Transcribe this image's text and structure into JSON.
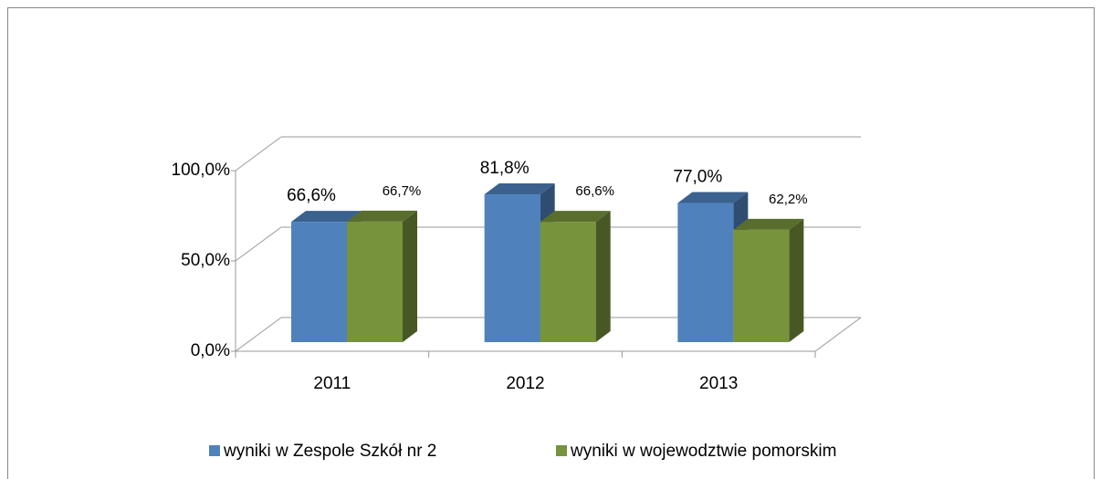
{
  "chart_data": {
    "type": "bar3d",
    "categories": [
      "2011",
      "2012",
      "2013"
    ],
    "series": [
      {
        "name": "wyniki w Zespole Szkół nr 2",
        "color": "#4f81bd",
        "values": [
          66.6,
          81.8,
          77.0
        ],
        "value_labels": [
          "66,6%",
          "81,8%",
          "77,0%"
        ]
      },
      {
        "name": "wyniki w wojewodztwie pomorskim",
        "color": "#77933c",
        "values": [
          66.7,
          66.6,
          62.2
        ],
        "value_labels": [
          "66,7%",
          "66,6%",
          "62,2%"
        ]
      }
    ],
    "ylim": [
      0,
      100
    ],
    "yticks": [
      {
        "value": 0,
        "label": "0,0%"
      },
      {
        "value": 50,
        "label": "50,0%"
      },
      {
        "value": 100,
        "label": "100,0%"
      }
    ],
    "grid": true,
    "legend": "bottom"
  }
}
